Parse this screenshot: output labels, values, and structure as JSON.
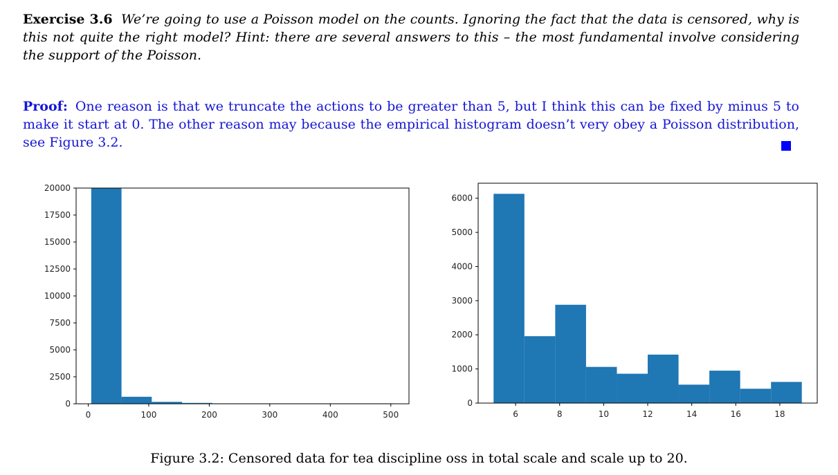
{
  "exercise": {
    "label": "Exercise 3.6",
    "text": "We’re going to use a Poisson model on the counts. Ignoring the fact that the data is censored, why is this not quite the right model? Hint: there are several answers to this – the most fundamental involve considering the support of the Poisson."
  },
  "proof": {
    "label": "Proof:",
    "text": "One reason is that we truncate the actions to be greater than 5, but I think this can be fixed by minus 5 to make it start at 0. The other reason may because the empirical histogram doesn’t very obey a Poisson distribution, see Figure 3.2."
  },
  "caption": "Figure 3.2: Censored data for tea discipline oss in total scale and scale up to 20.",
  "colors": {
    "bar": "#1f77b4",
    "proof_text": "#1515d6",
    "qed": "#0000ff"
  },
  "chart_data": [
    {
      "type": "bar",
      "bins": [
        {
          "x0": 5,
          "x1": 55,
          "count": 20000
        },
        {
          "x0": 55,
          "x1": 105,
          "count": 650
        },
        {
          "x0": 105,
          "x1": 155,
          "count": 180
        },
        {
          "x0": 155,
          "x1": 205,
          "count": 80
        },
        {
          "x0": 205,
          "x1": 255,
          "count": 15
        },
        {
          "x0": 255,
          "x1": 305,
          "count": 5
        },
        {
          "x0": 305,
          "x1": 355,
          "count": 2
        },
        {
          "x0": 355,
          "x1": 405,
          "count": 1
        },
        {
          "x0": 405,
          "x1": 455,
          "count": 1
        },
        {
          "x0": 455,
          "x1": 505,
          "count": 1
        }
      ],
      "xlim": [
        -20,
        530
      ],
      "ylim": [
        0,
        20000
      ],
      "xticks": [
        0,
        100,
        200,
        300,
        400,
        500
      ],
      "yticks": [
        0,
        2500,
        5000,
        7500,
        10000,
        12500,
        15000,
        17500,
        20000
      ]
    },
    {
      "type": "bar",
      "bins": [
        {
          "x0": 5,
          "x1": 6.4,
          "count": 6130
        },
        {
          "x0": 6.4,
          "x1": 7.8,
          "count": 1960
        },
        {
          "x0": 7.8,
          "x1": 9.2,
          "count": 2880
        },
        {
          "x0": 9.2,
          "x1": 10.6,
          "count": 1060
        },
        {
          "x0": 10.6,
          "x1": 12.0,
          "count": 860
        },
        {
          "x0": 12.0,
          "x1": 13.4,
          "count": 1420
        },
        {
          "x0": 13.4,
          "x1": 14.8,
          "count": 540
        },
        {
          "x0": 14.8,
          "x1": 16.2,
          "count": 950
        },
        {
          "x0": 16.2,
          "x1": 17.6,
          "count": 420
        },
        {
          "x0": 17.6,
          "x1": 19.0,
          "count": 620
        }
      ],
      "xlim": [
        4.3,
        19.7
      ],
      "ylim": [
        0,
        6440
      ],
      "xticks": [
        6,
        8,
        10,
        12,
        14,
        16,
        18
      ],
      "yticks": [
        0,
        1000,
        2000,
        3000,
        4000,
        5000,
        6000
      ]
    }
  ]
}
